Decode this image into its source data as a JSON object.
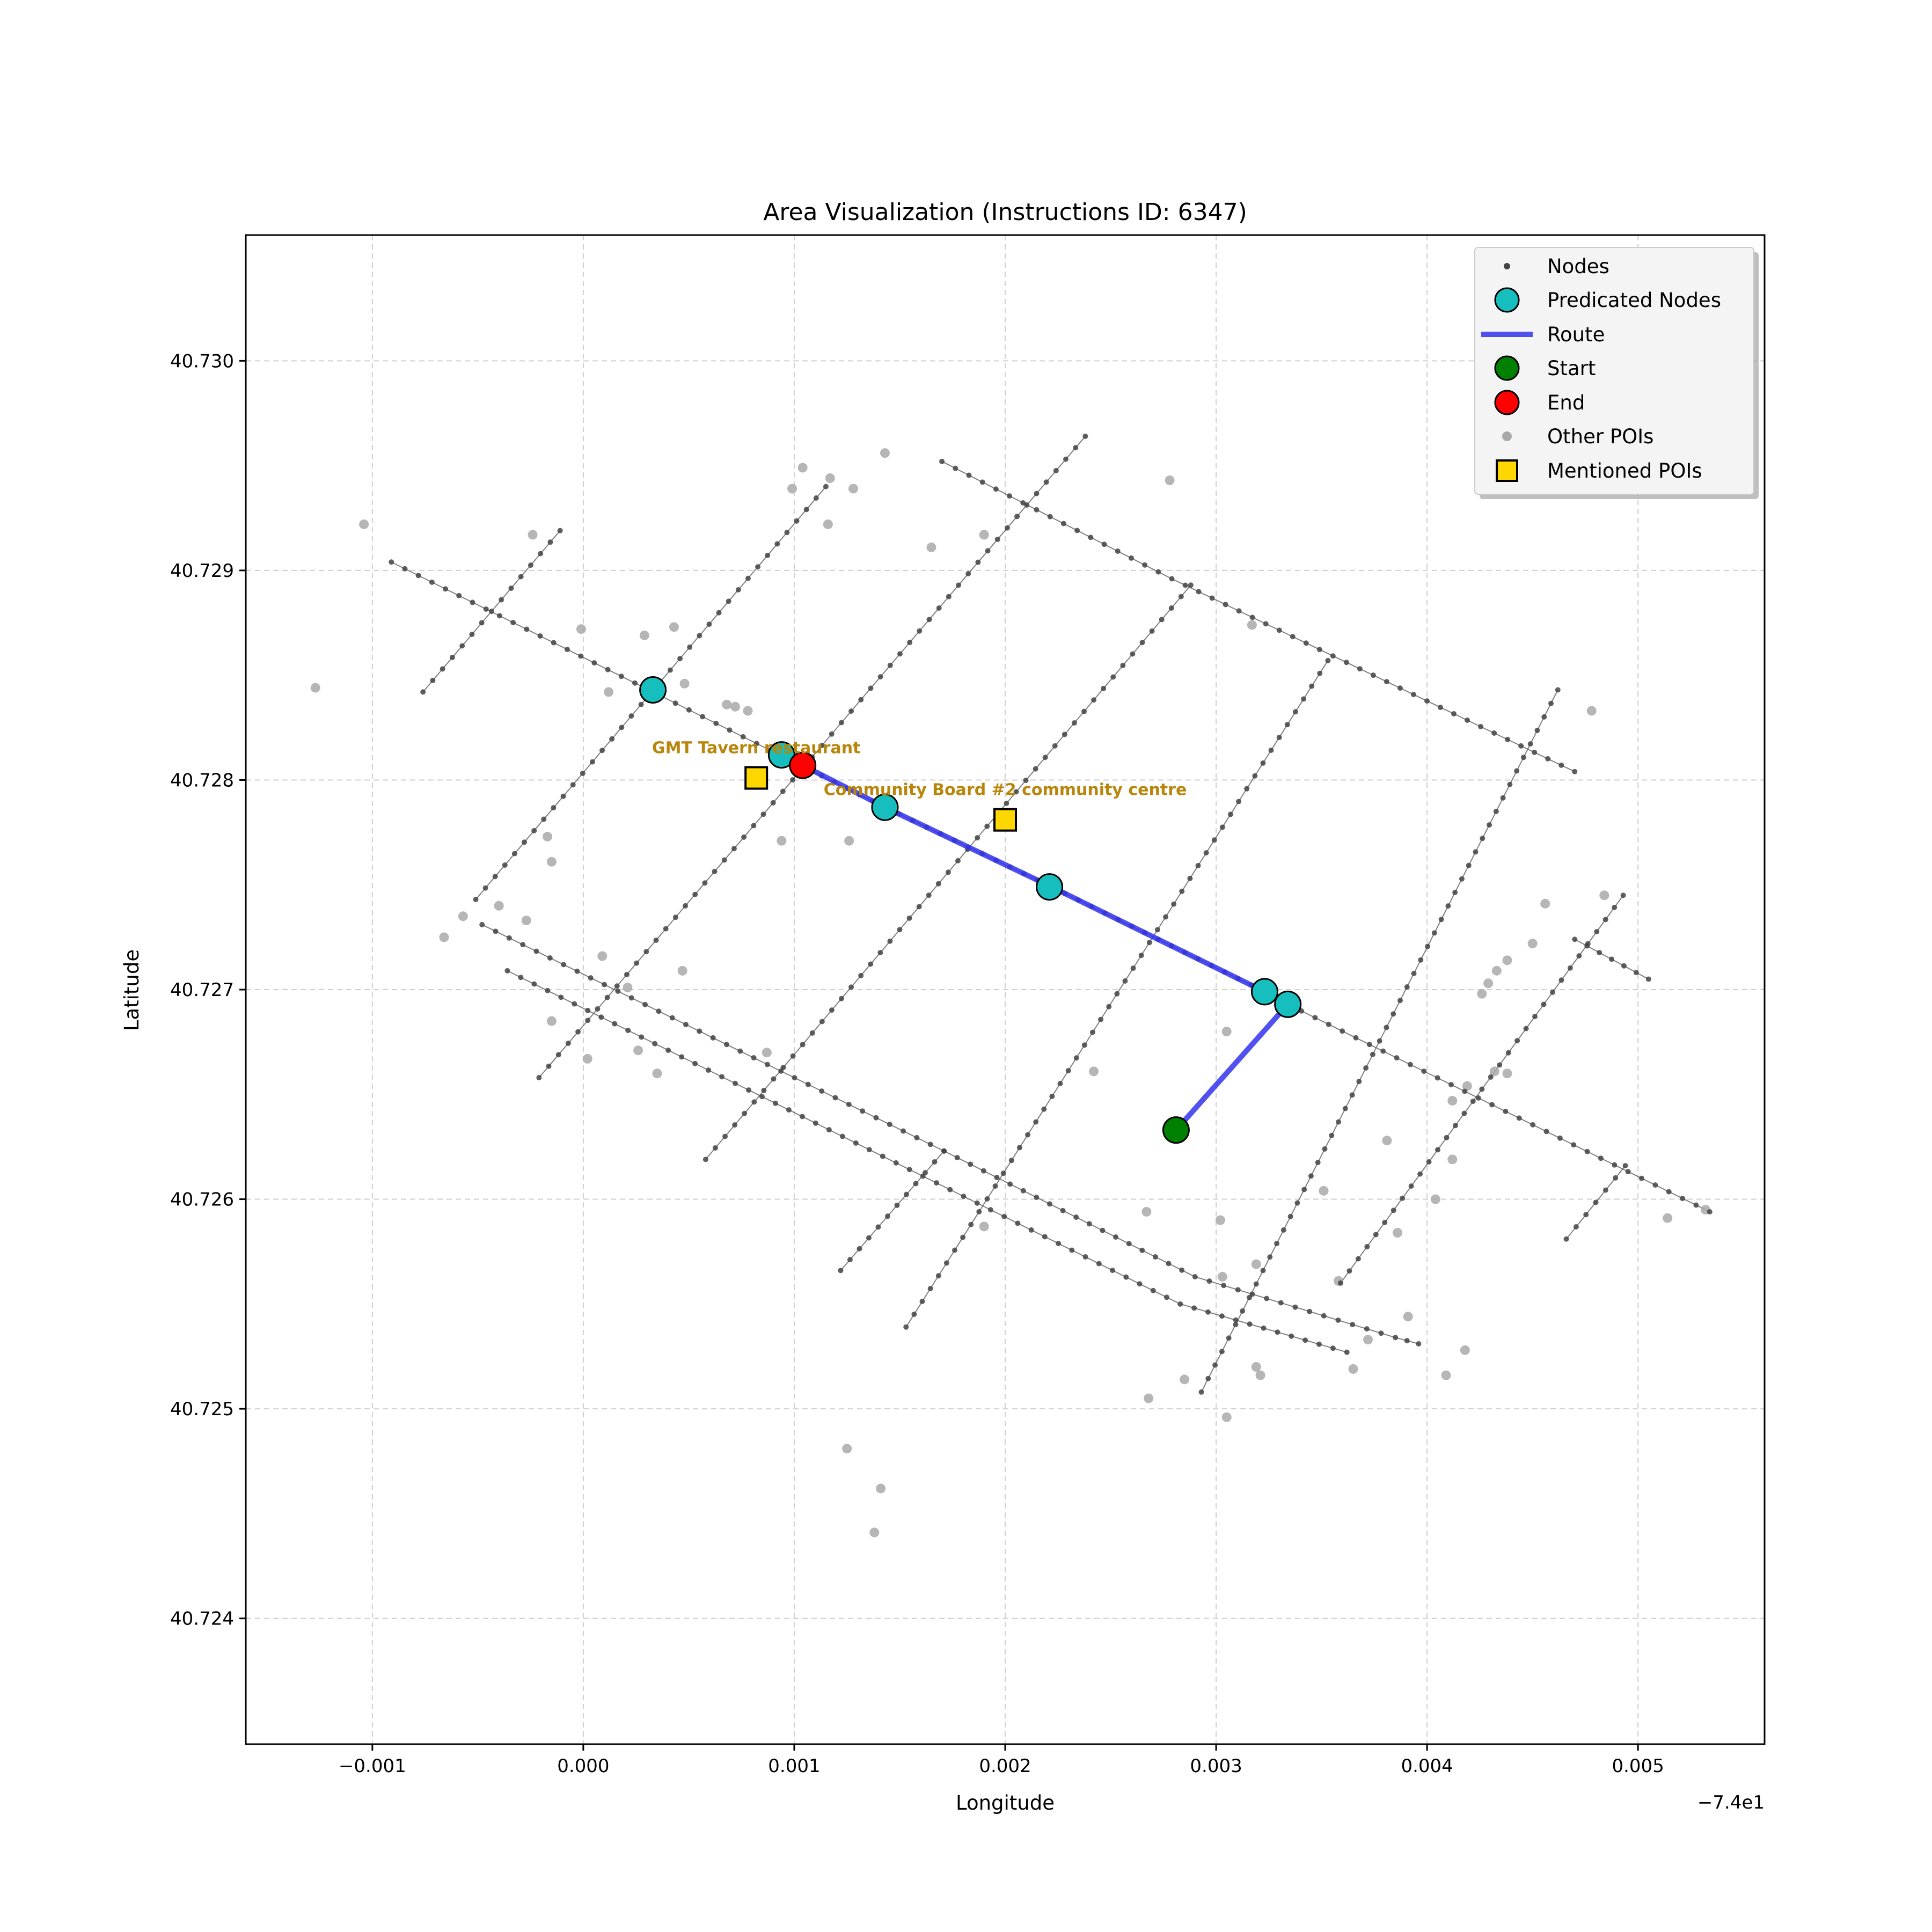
{
  "chart_data": {
    "type": "scatter",
    "title": "Area Visualization (Instructions ID: 6347)",
    "xlabel": "Longitude",
    "ylabel": "Latitude",
    "x_offset_label": "−7.4e1",
    "xlim": [
      -0.0016,
      0.0056
    ],
    "ylim": [
      40.7234,
      40.7306
    ],
    "x_ticks": [
      -0.001,
      0.0,
      0.001,
      0.002,
      0.003,
      0.004,
      0.005
    ],
    "x_tick_labels": [
      "−0.001",
      "0.000",
      "0.001",
      "0.002",
      "0.003",
      "0.004",
      "0.005"
    ],
    "y_ticks": [
      40.724,
      40.725,
      40.726,
      40.727,
      40.728,
      40.729,
      40.73
    ],
    "y_tick_labels": [
      "40.724",
      "40.725",
      "40.726",
      "40.727",
      "40.728",
      "40.729",
      "40.730"
    ],
    "grid": true,
    "legend_position": "top-right",
    "legend": [
      "Nodes",
      "Predicated Nodes",
      "Route",
      "Start",
      "End",
      "Other POIs",
      "Mentioned POIs"
    ],
    "streets": [
      [
        [
          -0.00091,
          40.72904
        ],
        [
          0.00095,
          40.72811
        ],
        [
          0.00143,
          40.72787
        ],
        [
          0.00222,
          40.72749
        ],
        [
          0.00323,
          40.72699
        ],
        [
          0.00334,
          40.72693
        ],
        [
          0.00534,
          40.72594
        ]
      ],
      [
        [
          0.0017,
          40.72952
        ],
        [
          0.00279,
          40.72896
        ],
        [
          0.0047,
          40.72804
        ]
      ],
      [
        [
          -0.00048,
          40.72731
        ],
        [
          0.00171,
          40.72623
        ],
        [
          0.0029,
          40.72563
        ],
        [
          0.00385,
          40.72534
        ],
        [
          0.00396,
          40.72531
        ]
      ],
      [
        [
          -0.00036,
          40.72709
        ],
        [
          0.00161,
          40.72611
        ],
        [
          0.00283,
          40.7255
        ],
        [
          0.00362,
          40.72527
        ]
      ],
      [
        [
          0.0047,
          40.72724
        ],
        [
          0.00505,
          40.72705
        ]
      ],
      [
        [
          -0.00076,
          40.72842
        ],
        [
          -0.00011,
          40.72919
        ]
      ],
      [
        [
          -0.00051,
          40.72743
        ],
        [
          0.00115,
          40.7294
        ]
      ],
      [
        [
          -0.00021,
          40.72658
        ],
        [
          0.00238,
          40.72964
        ]
      ],
      [
        [
          0.00058,
          40.72619
        ],
        [
          0.00288,
          40.72893
        ]
      ],
      [
        [
          0.00122,
          40.72566
        ],
        [
          0.00171,
          40.72623
        ]
      ],
      [
        [
          0.00153,
          40.72539
        ],
        [
          0.00353,
          40.72857
        ]
      ],
      [
        [
          0.00293,
          40.72508
        ],
        [
          0.00462,
          40.72843
        ]
      ],
      [
        [
          0.00359,
          40.7256
        ],
        [
          0.00493,
          40.72745
        ]
      ],
      [
        [
          0.00466,
          40.72581
        ],
        [
          0.00494,
          40.72616
        ]
      ]
    ],
    "route": [
      [
        0.00281,
        40.72633
      ],
      [
        0.00334,
        40.72693
      ],
      [
        0.00323,
        40.72699
      ],
      [
        0.00222,
        40.72749
      ],
      [
        0.00143,
        40.72787
      ],
      [
        0.00104,
        40.72807
      ]
    ],
    "predicated_nodes": [
      [
        0.00033,
        40.72843
      ],
      [
        0.00094,
        40.72812
      ],
      [
        0.00143,
        40.72787
      ],
      [
        0.00221,
        40.72749
      ],
      [
        0.00323,
        40.72699
      ],
      [
        0.00334,
        40.72693
      ]
    ],
    "start": [
      0.00281,
      40.72633
    ],
    "end": [
      0.00104,
      40.72807
    ],
    "other_pois": [
      [
        -0.00127,
        40.72844
      ],
      [
        -0.00104,
        40.72922
      ],
      [
        -0.00024,
        40.72917
      ],
      [
        -1e-05,
        40.72872
      ],
      [
        0.00029,
        40.72869
      ],
      [
        0.00043,
        40.72873
      ],
      [
        0.00012,
        40.72842
      ],
      [
        0.00048,
        40.72846
      ],
      [
        0.00068,
        40.72836
      ],
      [
        0.00072,
        40.72835
      ],
      [
        0.00078,
        40.72833
      ],
      [
        0.00099,
        40.72939
      ],
      [
        0.00104,
        40.72949
      ],
      [
        0.00117,
        40.72944
      ],
      [
        0.00128,
        40.72939
      ],
      [
        0.00143,
        40.72956
      ],
      [
        0.00116,
        40.72922
      ],
      [
        0.00165,
        40.72911
      ],
      [
        0.0019,
        40.72917
      ],
      [
        0.00278,
        40.72943
      ],
      [
        0.00317,
        40.72874
      ],
      [
        0.00478,
        40.72833
      ],
      [
        -0.00017,
        40.72773
      ],
      [
        -0.00015,
        40.72761
      ],
      [
        0.00094,
        40.72771
      ],
      [
        0.00126,
        40.72771
      ],
      [
        -0.00057,
        40.72735
      ],
      [
        -0.0004,
        40.7274
      ],
      [
        -0.00027,
        40.72733
      ],
      [
        -0.00066,
        40.72725
      ],
      [
        9e-05,
        40.72716
      ],
      [
        0.00047,
        40.72709
      ],
      [
        0.00021,
        40.72701
      ],
      [
        -0.00015,
        40.72685
      ],
      [
        2e-05,
        40.72667
      ],
      [
        0.00026,
        40.72671
      ],
      [
        0.00035,
        40.7266
      ],
      [
        0.00087,
        40.7267
      ],
      [
        0.00242,
        40.72661
      ],
      [
        0.00305,
        40.7268
      ],
      [
        0.00456,
        40.72741
      ],
      [
        0.00484,
        40.72745
      ],
      [
        0.0045,
        40.72722
      ],
      [
        0.00438,
        40.72714
      ],
      [
        0.00433,
        40.72709
      ],
      [
        0.00429,
        40.72703
      ],
      [
        0.00426,
        40.72698
      ],
      [
        0.00432,
        40.72661
      ],
      [
        0.00438,
        40.7266
      ],
      [
        0.00419,
        40.72654
      ],
      [
        0.00412,
        40.72647
      ],
      [
        0.00381,
        40.72628
      ],
      [
        0.00412,
        40.72619
      ],
      [
        0.00351,
        40.72604
      ],
      [
        0.00404,
        40.726
      ],
      [
        0.00267,
        40.72594
      ],
      [
        0.00302,
        40.7259
      ],
      [
        0.0019,
        40.72587
      ],
      [
        0.00386,
        40.72584
      ],
      [
        0.00514,
        40.72591
      ],
      [
        0.00532,
        40.72595
      ],
      [
        0.00319,
        40.72569
      ],
      [
        0.00303,
        40.72563
      ],
      [
        0.00358,
        40.72561
      ],
      [
        0.00391,
        40.72544
      ],
      [
        0.00372,
        40.72533
      ],
      [
        0.00418,
        40.72528
      ],
      [
        0.00365,
        40.72519
      ],
      [
        0.00409,
        40.72516
      ],
      [
        0.00319,
        40.7252
      ],
      [
        0.00321,
        40.72516
      ],
      [
        0.00285,
        40.72514
      ],
      [
        0.00268,
        40.72505
      ],
      [
        0.00305,
        40.72496
      ],
      [
        0.00125,
        40.72481
      ],
      [
        0.00141,
        40.72462
      ],
      [
        0.00138,
        40.72441
      ]
    ],
    "mentioned_pois": [
      {
        "name": "GMT Tavern restaurant",
        "lon": 0.00082,
        "lat": 40.72801
      },
      {
        "name": "Community Board #2 community centre",
        "lon": 0.002,
        "lat": 40.72781
      }
    ],
    "colors": {
      "nodes": "#444444",
      "street_line": "#555555",
      "predicated": "#17bebe",
      "route": "#3333ee",
      "start": "#008000",
      "end": "#ff0000",
      "other_poi": "#a9a9a9",
      "mentioned_poi": "#ffd700",
      "poi_label": "#b8860b"
    }
  }
}
